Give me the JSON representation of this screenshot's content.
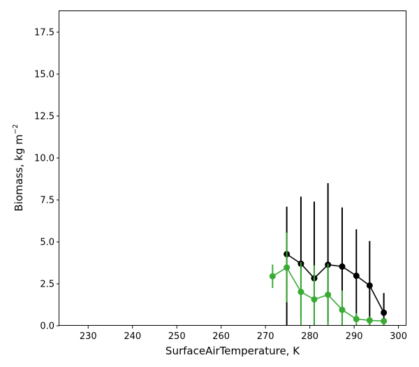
{
  "chart_data": {
    "type": "line",
    "xlabel": "SurfaceAirTemperature,  K",
    "ylabel_text": "Biomass,  kg m",
    "ylabel_sup": "−2",
    "xlim": [
      223.5,
      301.8
    ],
    "ylim": [
      0,
      18.75
    ],
    "xticks": [
      230,
      240,
      250,
      260,
      270,
      280,
      290,
      300
    ],
    "xtick_labels": [
      "230",
      "240",
      "250",
      "260",
      "270",
      "280",
      "290",
      "300"
    ],
    "yticks": [
      0,
      2.5,
      5,
      7.5,
      10,
      12.5,
      15,
      17.5
    ],
    "ytick_labels": [
      "0.0",
      "2.5",
      "5.0",
      "7.5",
      "10.0",
      "12.5",
      "15.0",
      "17.5"
    ],
    "series": [
      {
        "color": "#000000",
        "x": [
          274.8,
          278.0,
          281.0,
          284.1,
          287.3,
          290.5,
          293.5,
          296.7
        ],
        "y": [
          4.27,
          3.7,
          2.83,
          3.64,
          3.53,
          2.98,
          2.4,
          0.78
        ],
        "err_low": [
          0.0,
          0.4,
          0.0,
          0.2,
          0.0,
          0.3,
          0.0,
          0.0
        ],
        "err_high": [
          7.1,
          7.7,
          7.4,
          8.5,
          7.05,
          5.75,
          5.05,
          1.95
        ]
      },
      {
        "color": "#3aaa35",
        "x": [
          271.6,
          274.8,
          278.0,
          281.0,
          284.1,
          287.3,
          290.5,
          293.5,
          296.7
        ],
        "y": [
          2.95,
          3.47,
          2.02,
          1.57,
          1.85,
          0.95,
          0.4,
          0.32,
          0.28
        ],
        "err_low": [
          2.25,
          1.4,
          0.0,
          0.0,
          0.0,
          0.0,
          0.0,
          0.0,
          0.0
        ],
        "err_high": [
          3.65,
          5.55,
          3.8,
          3.6,
          3.7,
          2.1,
          0.75,
          0.55,
          0.45
        ]
      }
    ]
  }
}
